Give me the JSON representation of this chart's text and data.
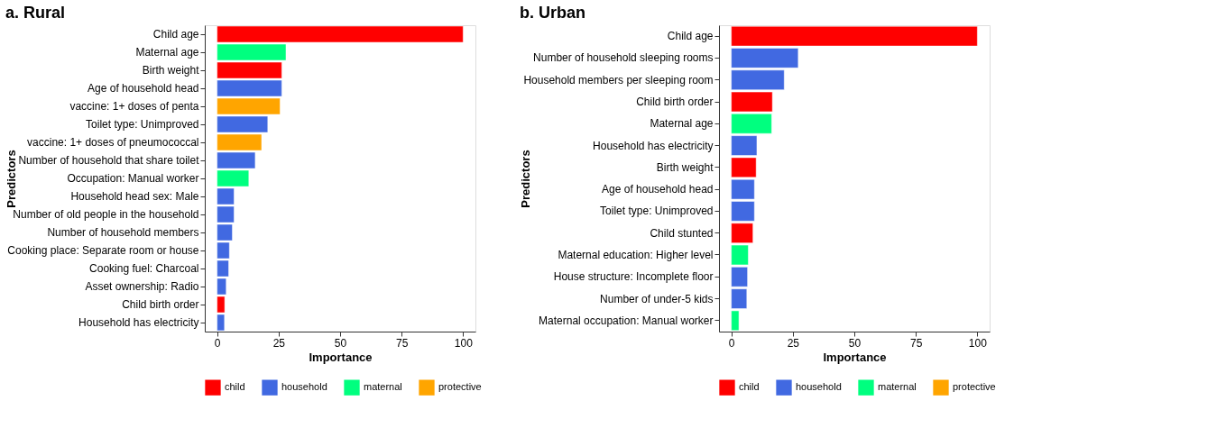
{
  "chart_data": [
    {
      "type": "bar",
      "orientation": "horizontal",
      "title": "a. Rural",
      "xlabel": "Importance",
      "ylabel": "Predictors",
      "categories": [
        "Child age",
        "Maternal age",
        "Birth weight",
        "Age of household head",
        "vaccine: 1+ doses of penta",
        "Toilet type: Unimproved",
        "vaccine: 1+ doses of pneumococcal",
        "Number of household that share toilet",
        "Occupation: Manual worker",
        "Household head sex: Male",
        "Number of old people in the household",
        "Number of household members",
        "Cooking place: Separate room or house",
        "Cooking fuel: Charcoal",
        "Asset ownership: Radio",
        "Child birth order",
        "Household has electricity"
      ],
      "series": [
        {
          "name": "child",
          "color": "#ff0000",
          "values": [
            100,
            null,
            26.3,
            null,
            null,
            null,
            null,
            null,
            null,
            null,
            null,
            null,
            null,
            null,
            null,
            3.1,
            null
          ]
        },
        {
          "name": "household",
          "color": "#4169e1",
          "values": [
            null,
            null,
            null,
            26.3,
            null,
            20.6,
            null,
            15.5,
            null,
            6.9,
            6.9,
            6.2,
            5.0,
            4.7,
            3.7,
            null,
            3.0
          ]
        },
        {
          "name": "maternal",
          "color": "#00ff7f",
          "values": [
            null,
            28,
            null,
            null,
            null,
            null,
            null,
            null,
            12.9,
            null,
            null,
            null,
            null,
            null,
            null,
            null,
            null
          ]
        },
        {
          "name": "protective",
          "color": "#ffa500",
          "values": [
            null,
            null,
            null,
            null,
            25.6,
            null,
            18.1,
            null,
            null,
            null,
            null,
            null,
            null,
            null,
            null,
            null,
            null
          ]
        }
      ],
      "xlim": [
        -5,
        105
      ],
      "xticks": [
        0,
        25,
        50,
        75,
        100
      ],
      "grid": false,
      "legend": "bottom"
    },
    {
      "type": "bar",
      "orientation": "horizontal",
      "title": "b. Urban",
      "xlabel": "Importance",
      "ylabel": "Predictors",
      "categories": [
        "Child age",
        "Number of household sleeping rooms",
        "Household members per sleeping room",
        "Child birth order",
        "Maternal age",
        "Household has electricity",
        "Birth weight",
        "Age of household head",
        "Toilet type: Unimproved",
        "Child stunted",
        "Maternal education: Higher level",
        "House structure: Incomplete floor",
        "Number of under-5 kids",
        "Maternal occupation: Manual worker"
      ],
      "series": [
        {
          "name": "child",
          "color": "#ff0000",
          "values": [
            100,
            null,
            null,
            16.7,
            null,
            null,
            10.1,
            null,
            null,
            8.8,
            null,
            null,
            null,
            null
          ]
        },
        {
          "name": "household",
          "color": "#4169e1",
          "values": [
            null,
            27.2,
            21.5,
            null,
            null,
            10.4,
            null,
            9.4,
            9.4,
            null,
            null,
            6.6,
            6.3,
            null
          ]
        },
        {
          "name": "maternal",
          "color": "#00ff7f",
          "values": [
            null,
            null,
            null,
            null,
            16.4,
            null,
            null,
            null,
            null,
            null,
            6.9,
            null,
            null,
            3.1
          ]
        },
        {
          "name": "protective",
          "color": "#ffa500",
          "values": [
            null,
            null,
            null,
            null,
            null,
            null,
            null,
            null,
            null,
            null,
            null,
            null,
            null,
            null
          ]
        }
      ],
      "xlim": [
        -5,
        105
      ],
      "xticks": [
        0,
        25,
        50,
        75,
        100
      ],
      "grid": false,
      "legend": "bottom"
    }
  ]
}
